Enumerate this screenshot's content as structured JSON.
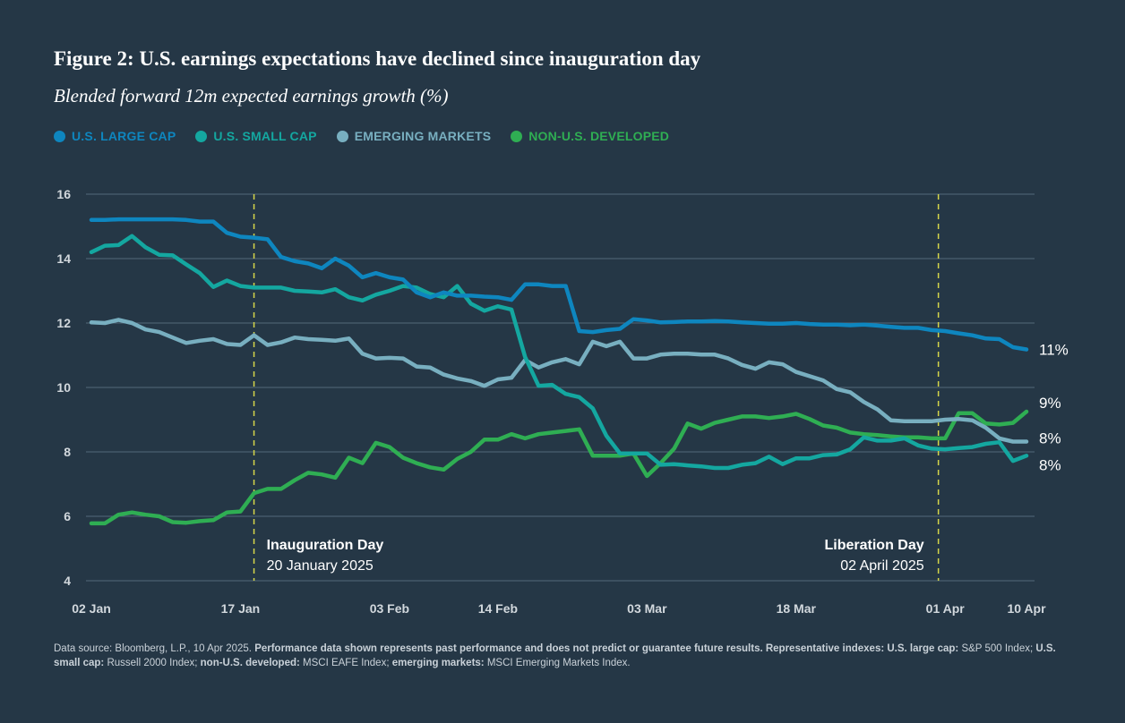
{
  "header": {
    "title": "Figure 2: U.S. earnings expectations have declined since inauguration day",
    "subtitle": "Blended forward 12m expected earnings growth (%)"
  },
  "footnote": {
    "source": "Data source: Bloomberg, L.P., 10 Apr 2025. ",
    "performance": "Performance data shown represents past performance and does not predict or guarantee future results. Representative indexes: U.S. large cap:",
    "large_cap_index": " S&P 500 Index; ",
    "small_cap_label": "U.S. small cap:",
    "small_cap_index": " Russell 2000 Index; ",
    "developed_label": "non-U.S. developed:",
    "developed_index": " MSCI EAFE Index; ",
    "em_label": "emerging markets:",
    "em_index": " MSCI Emerging Markets Index."
  },
  "chart_data": {
    "type": "line",
    "title": "Figure 2: U.S. earnings expectations have declined since inauguration day",
    "subtitle": "Blended forward 12m expected earnings growth (%)",
    "ylim": [
      4,
      16
    ],
    "yticks": [
      4,
      6,
      8,
      10,
      12,
      14,
      16
    ],
    "grid": "horizontal",
    "legend_position": "top-left",
    "x_tick_labels": [
      "02 Jan",
      "17 Jan",
      "03 Feb",
      "14 Feb",
      "03 Mar",
      "18 Mar",
      "01 Apr",
      "10 Apr"
    ],
    "x_tick_index": [
      0,
      11,
      22,
      30,
      41,
      52,
      63,
      69
    ],
    "n_points": 70,
    "annotations": [
      {
        "index": 12,
        "title": "Inauguration Day",
        "date": "20 January 2025",
        "align": "left"
      },
      {
        "index": 62.5,
        "title": "Liberation Day",
        "date": "02 April 2025",
        "align": "right"
      }
    ],
    "series": [
      {
        "name": "U.S. LARGE CAP",
        "color": "#0E86BF",
        "end_label": "11%",
        "values": [
          15.2,
          15.2,
          15.22,
          15.22,
          15.22,
          15.22,
          15.22,
          15.2,
          15.15,
          15.15,
          14.8,
          14.68,
          14.65,
          14.6,
          14.05,
          13.92,
          13.85,
          13.7,
          14.0,
          13.78,
          13.42,
          13.55,
          13.42,
          13.35,
          12.95,
          12.8,
          12.95,
          12.85,
          12.85,
          12.82,
          12.8,
          12.72,
          13.2,
          13.2,
          13.15,
          13.15,
          11.75,
          11.72,
          11.78,
          11.82,
          12.12,
          12.08,
          12.02,
          12.03,
          12.05,
          12.05,
          12.06,
          12.05,
          12.02,
          12.0,
          11.98,
          11.98,
          12.0,
          11.97,
          11.95,
          11.95,
          11.93,
          11.95,
          11.92,
          11.88,
          11.85,
          11.85,
          11.78,
          11.75,
          11.68,
          11.62,
          11.52,
          11.5,
          11.25,
          11.18
        ]
      },
      {
        "name": "U.S. SMALL CAP",
        "color": "#14A7A0",
        "end_label": "8%",
        "values": [
          14.2,
          14.4,
          14.42,
          14.7,
          14.35,
          14.12,
          14.1,
          13.82,
          13.55,
          13.12,
          13.32,
          13.15,
          13.1,
          13.1,
          13.1,
          13.0,
          12.98,
          12.95,
          13.05,
          12.8,
          12.7,
          12.88,
          13.0,
          13.15,
          13.1,
          12.9,
          12.8,
          13.15,
          12.6,
          12.38,
          12.52,
          12.42,
          10.95,
          10.05,
          10.08,
          9.8,
          9.7,
          9.35,
          8.5,
          7.95,
          7.95,
          7.95,
          7.6,
          7.62,
          7.58,
          7.55,
          7.5,
          7.5,
          7.6,
          7.65,
          7.85,
          7.62,
          7.8,
          7.8,
          7.9,
          7.92,
          8.08,
          8.45,
          8.35,
          8.35,
          8.42,
          8.2,
          8.1,
          8.08,
          8.12,
          8.15,
          8.25,
          8.3,
          7.72,
          7.88
        ]
      },
      {
        "name": "EMERGING MARKETS",
        "color": "#78AFC0",
        "end_label": "8%",
        "values": [
          12.02,
          12.0,
          12.1,
          12.0,
          11.8,
          11.72,
          11.55,
          11.38,
          11.45,
          11.5,
          11.35,
          11.32,
          11.62,
          11.32,
          11.4,
          11.55,
          11.5,
          11.48,
          11.45,
          11.52,
          11.05,
          10.9,
          10.92,
          10.9,
          10.65,
          10.62,
          10.4,
          10.28,
          10.2,
          10.05,
          10.25,
          10.3,
          10.85,
          10.62,
          10.78,
          10.88,
          10.72,
          11.42,
          11.28,
          11.42,
          10.9,
          10.9,
          11.02,
          11.05,
          11.05,
          11.02,
          11.02,
          10.9,
          10.7,
          10.58,
          10.78,
          10.72,
          10.48,
          10.35,
          10.22,
          9.95,
          9.85,
          9.55,
          9.32,
          8.98,
          8.95,
          8.95,
          8.95,
          9.0,
          9.02,
          8.98,
          8.75,
          8.42,
          8.32,
          8.32
        ]
      },
      {
        "name": "NON-U.S. DEVELOPED",
        "color": "#2FAE53",
        "end_label": "9%",
        "values": [
          5.78,
          5.78,
          6.05,
          6.12,
          6.05,
          6.0,
          5.82,
          5.8,
          5.85,
          5.88,
          6.12,
          6.15,
          6.72,
          6.85,
          6.85,
          7.12,
          7.35,
          7.3,
          7.2,
          7.82,
          7.65,
          8.28,
          8.15,
          7.82,
          7.65,
          7.52,
          7.45,
          7.78,
          8.0,
          8.38,
          8.38,
          8.55,
          8.42,
          8.55,
          8.6,
          8.65,
          8.7,
          7.88,
          7.88,
          7.88,
          7.95,
          7.25,
          7.65,
          8.1,
          8.88,
          8.72,
          8.9,
          9.0,
          9.1,
          9.1,
          9.05,
          9.1,
          9.18,
          9.02,
          8.82,
          8.75,
          8.6,
          8.55,
          8.52,
          8.48,
          8.45,
          8.45,
          8.42,
          8.42,
          9.2,
          9.2,
          8.88,
          8.85,
          8.9,
          9.25
        ]
      }
    ]
  }
}
